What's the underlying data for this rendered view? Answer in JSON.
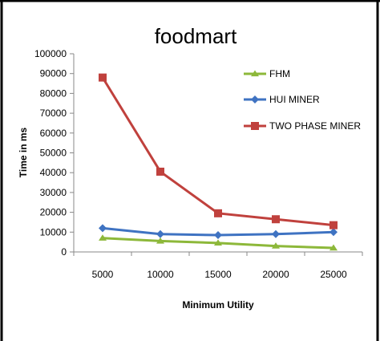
{
  "chart_data": {
    "type": "line",
    "title": "foodmart",
    "xlabel": "Minimum Utility",
    "ylabel": "Time in ms",
    "categories": [
      "5000",
      "10000",
      "15000",
      "20000",
      "25000"
    ],
    "ylim": [
      0,
      100000
    ],
    "yticks": [
      0,
      10000,
      20000,
      30000,
      40000,
      50000,
      60000,
      70000,
      80000,
      90000,
      100000
    ],
    "ytick_labels": [
      "0",
      "10000",
      "20000",
      "30000",
      "40000",
      "50000",
      "60000",
      "70000",
      "80000",
      "90000",
      "100000"
    ],
    "grid": false,
    "legend_position": "right",
    "series": [
      {
        "name": "FHM",
        "values": [
          7000,
          5500,
          4500,
          3000,
          2000
        ],
        "color": "#8DB83A",
        "marker": "triangle"
      },
      {
        "name": "HUI MINER",
        "values": [
          12000,
          9000,
          8500,
          9000,
          10000
        ],
        "color": "#3F73C2",
        "marker": "diamond"
      },
      {
        "name": "TWO PHASE MINER",
        "values": [
          88000,
          40500,
          19500,
          16500,
          13500
        ],
        "color": "#C0413D",
        "marker": "square"
      }
    ]
  }
}
